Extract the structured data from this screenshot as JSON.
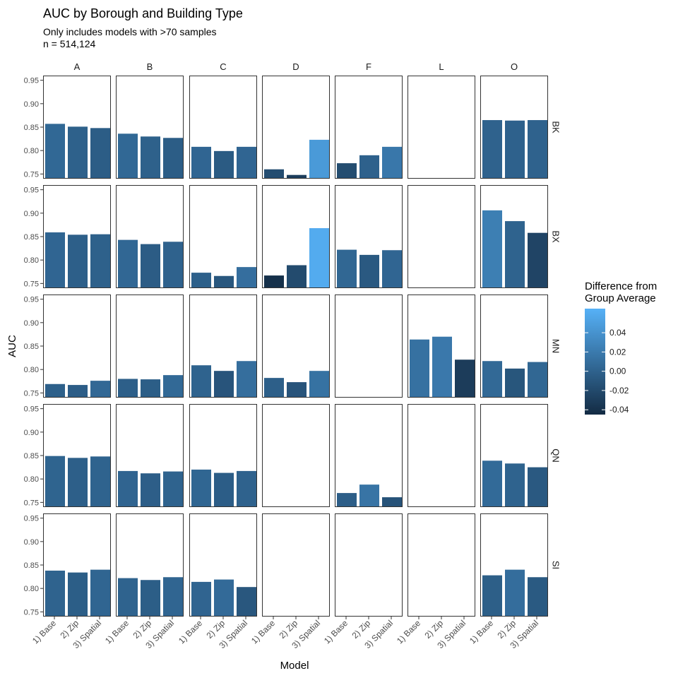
{
  "chart_data": {
    "type": "bar",
    "title": "AUC by Borough and Building Type",
    "subtitle_lines": [
      "Only includes models with >70 samples",
      "n = 514,124"
    ],
    "xlabel": "Model",
    "ylabel": "AUC",
    "ylim": [
      0.74,
      0.96
    ],
    "y_ticks": [
      0.75,
      0.8,
      0.85,
      0.9,
      0.95
    ],
    "y_tick_labels": [
      "0.75",
      "0.80",
      "0.85",
      "0.90",
      "0.95"
    ],
    "categories": [
      "1) Base",
      "2) Zip",
      "3) Spatial"
    ],
    "column_facets": [
      "A",
      "B",
      "C",
      "D",
      "F",
      "L",
      "O"
    ],
    "row_facets": [
      "BK",
      "BX",
      "MN",
      "QN",
      "SI"
    ],
    "panels": [
      {
        "row": "BK",
        "col": "A",
        "values": [
          0.857,
          0.851,
          0.848
        ]
      },
      {
        "row": "BK",
        "col": "B",
        "values": [
          0.836,
          0.83,
          0.827
        ]
      },
      {
        "row": "BK",
        "col": "C",
        "values": [
          0.808,
          0.799,
          0.808
        ]
      },
      {
        "row": "BK",
        "col": "D",
        "values": [
          0.76,
          0.748,
          0.823
        ]
      },
      {
        "row": "BK",
        "col": "F",
        "values": [
          0.773,
          0.79,
          0.808
        ]
      },
      {
        "row": "BK",
        "col": "L",
        "values": []
      },
      {
        "row": "BK",
        "col": "O",
        "values": [
          0.865,
          0.864,
          0.865
        ]
      },
      {
        "row": "BX",
        "col": "A",
        "values": [
          0.859,
          0.854,
          0.855
        ]
      },
      {
        "row": "BX",
        "col": "B",
        "values": [
          0.843,
          0.834,
          0.839
        ]
      },
      {
        "row": "BX",
        "col": "C",
        "values": [
          0.773,
          0.766,
          0.785
        ]
      },
      {
        "row": "BX",
        "col": "D",
        "values": [
          0.767,
          0.789,
          0.868
        ]
      },
      {
        "row": "BX",
        "col": "F",
        "values": [
          0.822,
          0.811,
          0.821
        ]
      },
      {
        "row": "BX",
        "col": "L",
        "values": []
      },
      {
        "row": "BX",
        "col": "O",
        "values": [
          0.906,
          0.883,
          0.858
        ]
      },
      {
        "row": "MN",
        "col": "A",
        "values": [
          0.769,
          0.767,
          0.776
        ]
      },
      {
        "row": "MN",
        "col": "B",
        "values": [
          0.78,
          0.779,
          0.788
        ]
      },
      {
        "row": "MN",
        "col": "C",
        "values": [
          0.809,
          0.797,
          0.818
        ]
      },
      {
        "row": "MN",
        "col": "D",
        "values": [
          0.782,
          0.773,
          0.797
        ]
      },
      {
        "row": "MN",
        "col": "F",
        "values": []
      },
      {
        "row": "MN",
        "col": "L",
        "values": [
          0.864,
          0.87,
          0.821
        ]
      },
      {
        "row": "MN",
        "col": "O",
        "values": [
          0.818,
          0.802,
          0.816
        ]
      },
      {
        "row": "QN",
        "col": "A",
        "values": [
          0.849,
          0.845,
          0.848
        ]
      },
      {
        "row": "QN",
        "col": "B",
        "values": [
          0.817,
          0.812,
          0.816
        ]
      },
      {
        "row": "QN",
        "col": "C",
        "values": [
          0.82,
          0.813,
          0.817
        ]
      },
      {
        "row": "QN",
        "col": "D",
        "values": []
      },
      {
        "row": "QN",
        "col": "F",
        "values": [
          0.77,
          0.788,
          0.761
        ]
      },
      {
        "row": "QN",
        "col": "L",
        "values": []
      },
      {
        "row": "QN",
        "col": "O",
        "values": [
          0.839,
          0.833,
          0.825
        ]
      },
      {
        "row": "SI",
        "col": "A",
        "values": [
          0.838,
          0.834,
          0.84
        ]
      },
      {
        "row": "SI",
        "col": "B",
        "values": [
          0.822,
          0.818,
          0.824
        ]
      },
      {
        "row": "SI",
        "col": "C",
        "values": [
          0.814,
          0.819,
          0.803
        ]
      },
      {
        "row": "SI",
        "col": "D",
        "values": []
      },
      {
        "row": "SI",
        "col": "F",
        "values": []
      },
      {
        "row": "SI",
        "col": "L",
        "values": []
      },
      {
        "row": "SI",
        "col": "O",
        "values": [
          0.828,
          0.84,
          0.824
        ]
      }
    ],
    "color_scale": {
      "title_lines": [
        "Difference from",
        "Group Average"
      ],
      "low_color": "#132b43",
      "high_color": "#56b1f7",
      "domain": [
        -0.045,
        0.065
      ],
      "ticks": [
        0.04,
        0.02,
        0.0,
        -0.02,
        -0.04
      ],
      "tick_labels": [
        "0.04",
        "0.02",
        "0.00",
        "-0.02",
        "-0.04"
      ]
    },
    "grid": false,
    "legend_position": "right"
  }
}
